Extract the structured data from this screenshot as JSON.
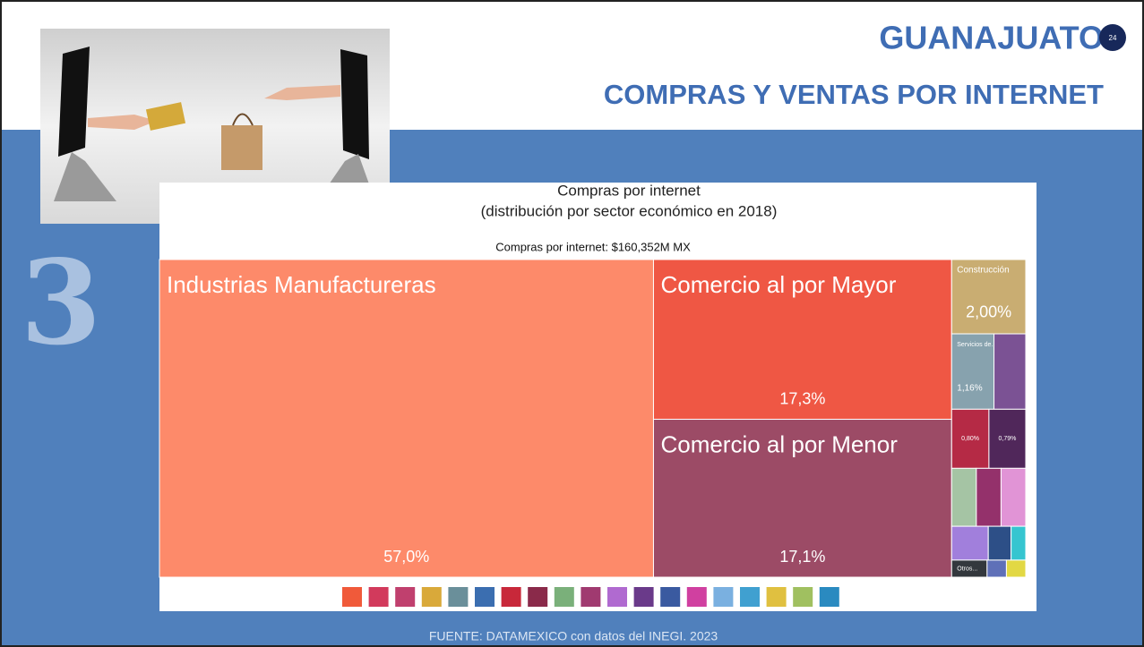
{
  "slide": {
    "title": "GUANAJUATO",
    "subtitle": "COMPRAS Y VENTAS POR INTERNET",
    "page_number": "24",
    "section_number": "3",
    "source": "FUENTE: DATAMEXICO con datos del INEGI. 2023"
  },
  "chart_data": {
    "type": "treemap",
    "title": "Compras por internet",
    "subtitle": "(distribución por sector económico en 2018)",
    "total_label": "Compras por internet: $160,352M MX",
    "categories": [
      "Industrias Manufactureras",
      "Comercio al por Mayor",
      "Comercio al por Menor",
      "Construcción",
      "Servicios de...",
      null,
      null,
      null,
      null,
      null,
      null,
      null,
      null,
      null,
      "Otros...",
      null,
      null
    ],
    "values": [
      57.0,
      17.3,
      17.1,
      2.0,
      1.16,
      0.87,
      0.8,
      0.79,
      0.52,
      0.52,
      0.52,
      0.45,
      0.28,
      0.18,
      0.22,
      0.12,
      0.12
    ],
    "value_labels": [
      "57,0%",
      "17,3%",
      "17,1%",
      "2,00%",
      "1,16%",
      null,
      "0,80%",
      "0,79%",
      null,
      null,
      null,
      null,
      null,
      null,
      null,
      null,
      null
    ],
    "colors": [
      "#fd8a6a",
      "#ef5744",
      "#9c4b66",
      "#c9ad72",
      "#87a2ae",
      "#7b5294",
      "#b52a45",
      "#50275a",
      "#a5c4a4",
      "#94316b",
      "#e194d6",
      "#a17fdc",
      "#2d4f87",
      "#35c5d0",
      "#33383d",
      "#5f70b8",
      "#e2d844"
    ]
  }
}
